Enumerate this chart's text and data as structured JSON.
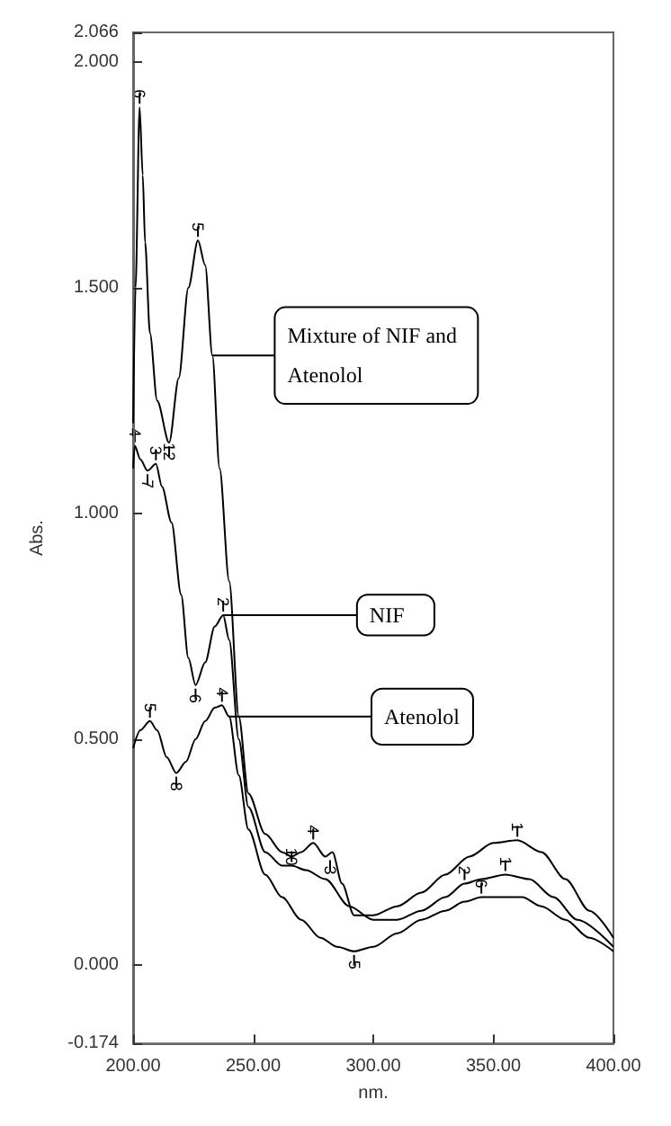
{
  "chart_data": {
    "type": "line",
    "xlabel": "nm.",
    "ylabel": "Abs.",
    "xlim": [
      200,
      400
    ],
    "xticks": [
      {
        "value": 200,
        "label": "200.00"
      },
      {
        "value": 250,
        "label": "250.00"
      },
      {
        "value": 300,
        "label": "300.00"
      },
      {
        "value": 350,
        "label": "350.00"
      },
      {
        "value": 400,
        "label": "400.00"
      }
    ],
    "ylim": [
      -0.174,
      2.066
    ],
    "yticks": [
      {
        "value": -0.174,
        "label": "-0.174"
      },
      {
        "value": 0,
        "label": "0.000"
      },
      {
        "value": 0.5,
        "label": "0.500"
      },
      {
        "value": 1,
        "label": "1.000"
      },
      {
        "value": 1.5,
        "label": "1.500"
      },
      {
        "value": 2,
        "label": "2.000"
      },
      {
        "value": 2.066,
        "label": "2.066"
      }
    ],
    "grid": false,
    "marker": "none",
    "series": [
      {
        "name": "Mixture of NIF and Atenolol",
        "color": "#000000",
        "x": [
          200,
          201,
          202.7,
          204,
          205,
          207,
          210,
          215,
          219,
          223,
          227,
          230,
          233,
          236,
          240,
          244,
          248,
          255,
          262,
          266,
          270,
          275,
          280,
          283,
          287,
          292,
          300,
          310,
          320,
          330,
          340,
          350,
          360,
          370,
          380,
          390,
          400
        ],
        "values": [
          1.2,
          1.5,
          1.9,
          1.75,
          1.6,
          1.4,
          1.25,
          1.157,
          1.3,
          1.5,
          1.605,
          1.55,
          1.35,
          1.1,
          0.85,
          0.55,
          0.38,
          0.29,
          0.25,
          0.24,
          0.25,
          0.27,
          0.24,
          0.25,
          0.18,
          0.11,
          0.11,
          0.13,
          0.16,
          0.2,
          0.24,
          0.27,
          0.276,
          0.25,
          0.19,
          0.12,
          0.06
        ]
      },
      {
        "name": "NIF",
        "color": "#000000",
        "x": [
          200,
          200.7,
          203,
          206,
          209.5,
          212,
          216,
          220,
          223,
          226,
          230,
          234,
          237.5,
          240,
          244,
          248,
          255,
          262,
          266,
          272,
          280,
          290,
          300,
          310,
          320,
          330,
          338,
          345,
          355,
          365,
          375,
          385,
          400
        ],
        "values": [
          1.1,
          1.15,
          1.12,
          1.095,
          1.11,
          1.06,
          0.98,
          0.82,
          0.68,
          0.62,
          0.67,
          0.75,
          0.775,
          0.72,
          0.5,
          0.35,
          0.25,
          0.22,
          0.22,
          0.21,
          0.19,
          0.13,
          0.1,
          0.1,
          0.12,
          0.15,
          0.18,
          0.19,
          0.2,
          0.19,
          0.15,
          0.1,
          0.04
        ]
      },
      {
        "name": "Atenolol",
        "color": "#000000",
        "x": [
          200,
          203,
          207,
          210,
          214,
          218,
          222,
          226,
          230,
          234,
          237,
          240,
          244,
          248,
          255,
          262,
          270,
          278,
          285,
          292,
          300,
          310,
          320,
          330,
          338,
          345,
          355,
          362,
          370,
          380,
          390,
          400
        ],
        "values": [
          0.48,
          0.52,
          0.54,
          0.52,
          0.46,
          0.425,
          0.45,
          0.5,
          0.54,
          0.57,
          0.575,
          0.55,
          0.42,
          0.3,
          0.2,
          0.15,
          0.1,
          0.06,
          0.04,
          0.03,
          0.04,
          0.07,
          0.1,
          0.12,
          0.14,
          0.15,
          0.15,
          0.15,
          0.13,
          0.1,
          0.06,
          0.03
        ]
      }
    ],
    "annotations": [
      {
        "text": "6",
        "x": 202.7,
        "y": 1.9
      },
      {
        "text": "12",
        "x": 215,
        "y": 1.157
      },
      {
        "text": "5",
        "x": 227,
        "y": 1.605
      },
      {
        "text": "4",
        "x": 275,
        "y": 0.27
      },
      {
        "text": "3",
        "x": 282,
        "y": 0.24
      },
      {
        "text": "1",
        "x": 360,
        "y": 0.276
      },
      {
        "text": "4",
        "x": 200.7,
        "y": 1.15
      },
      {
        "text": "7",
        "x": 206,
        "y": 1.095
      },
      {
        "text": "3",
        "x": 209.5,
        "y": 1.11
      },
      {
        "text": "6",
        "x": 226,
        "y": 0.62
      },
      {
        "text": "2",
        "x": 237.5,
        "y": 0.775
      },
      {
        "text": "10",
        "x": 266,
        "y": 0.22
      },
      {
        "text": "2",
        "x": 338,
        "y": 0.18
      },
      {
        "text": "1",
        "x": 355,
        "y": 0.2
      },
      {
        "text": "5",
        "x": 207,
        "y": 0.54
      },
      {
        "text": "8",
        "x": 218,
        "y": 0.425
      },
      {
        "text": "4",
        "x": 237,
        "y": 0.575
      },
      {
        "text": "5",
        "x": 292,
        "y": 0.03
      },
      {
        "text": "6",
        "x": 345,
        "y": 0.15
      }
    ]
  }
}
